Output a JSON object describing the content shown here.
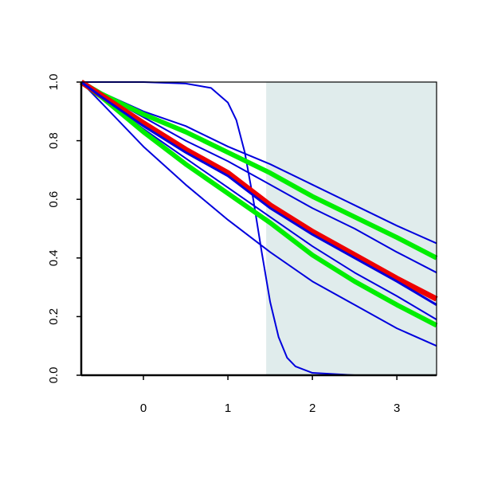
{
  "chart_data": {
    "type": "line",
    "xlim": [
      -0.736,
      3.47
    ],
    "ylim": [
      0,
      1
    ],
    "xticks": [
      0,
      1,
      2,
      3
    ],
    "yticks": [
      {
        "value": 0,
        "label": "0.0"
      },
      {
        "value": 0.2,
        "label": "0.2"
      },
      {
        "value": 0.4,
        "label": "0.4"
      },
      {
        "value": 0.6,
        "label": "0.6"
      },
      {
        "value": 0.8,
        "label": "0.8"
      },
      {
        "value": 1,
        "label": "1.0"
      }
    ],
    "shade_xlim": [
      1.453,
      3.47
    ],
    "shade_color": "#e0ecec",
    "series": [
      {
        "color": "#0000dd",
        "width": 2,
        "x": [
          -0.736,
          -0.5,
          0,
          0.5,
          1,
          1.5,
          2,
          2.5,
          3,
          3.47
        ],
        "values": [
          1,
          0.965,
          0.9,
          0.85,
          0.78,
          0.72,
          0.65,
          0.58,
          0.51,
          0.45
        ]
      },
      {
        "color": "#0000dd",
        "width": 2,
        "x": [
          -0.736,
          -0.5,
          0,
          0.5,
          1,
          1.5,
          2,
          2.5,
          3,
          3.47
        ],
        "values": [
          1,
          0.96,
          0.88,
          0.8,
          0.73,
          0.65,
          0.57,
          0.5,
          0.42,
          0.35
        ]
      },
      {
        "color": "#0000dd",
        "width": 2,
        "x": [
          -0.736,
          -0.5,
          0,
          0.5,
          1,
          1.5,
          2,
          2.5,
          3,
          3.47
        ],
        "values": [
          1,
          0.95,
          0.84,
          0.74,
          0.64,
          0.54,
          0.44,
          0.35,
          0.27,
          0.19
        ]
      },
      {
        "color": "#0000dd",
        "width": 2,
        "x": [
          -0.736,
          -0.5,
          0,
          0.5,
          1,
          1.5,
          2,
          2.5,
          3,
          3.47
        ],
        "values": [
          1,
          0.93,
          0.78,
          0.65,
          0.53,
          0.42,
          0.32,
          0.24,
          0.16,
          0.1
        ]
      },
      {
        "color": "#0000dd",
        "width": 2,
        "x": [
          -0.736,
          0,
          0.5,
          0.8,
          1,
          1.1,
          1.2,
          1.3,
          1.4,
          1.5,
          1.6,
          1.7,
          1.8,
          2,
          2.5,
          3.47
        ],
        "values": [
          1,
          1,
          0.995,
          0.98,
          0.93,
          0.87,
          0.76,
          0.6,
          0.42,
          0.25,
          0.13,
          0.06,
          0.03,
          0.008,
          0,
          0
        ]
      },
      {
        "color": "#00ee00",
        "width": 6,
        "x": [
          -0.736,
          -0.5,
          0,
          0.5,
          1,
          1.5,
          2,
          2.5,
          3,
          3.47
        ],
        "values": [
          1,
          0.96,
          0.89,
          0.83,
          0.76,
          0.69,
          0.61,
          0.54,
          0.47,
          0.4
        ]
      },
      {
        "color": "#00ee00",
        "width": 6,
        "x": [
          -0.736,
          -0.5,
          0,
          0.5,
          1,
          1.5,
          2,
          2.5,
          3,
          3.47
        ],
        "values": [
          1,
          0.95,
          0.83,
          0.72,
          0.62,
          0.52,
          0.41,
          0.32,
          0.24,
          0.17
        ]
      },
      {
        "color": "#ee0000",
        "width": 7,
        "x": [
          -0.736,
          -0.5,
          0,
          0.5,
          1,
          1.5,
          2,
          2.5,
          3,
          3.47
        ],
        "values": [
          1,
          0.955,
          0.86,
          0.77,
          0.69,
          0.58,
          0.49,
          0.41,
          0.33,
          0.26
        ]
      },
      {
        "color": "#0000dd",
        "width": 3,
        "x": [
          -0.736,
          -0.5,
          0,
          0.5,
          1,
          1.5,
          2,
          2.5,
          3,
          3.47
        ],
        "values": [
          1,
          0.95,
          0.85,
          0.76,
          0.68,
          0.57,
          0.48,
          0.4,
          0.32,
          0.24
        ]
      }
    ]
  }
}
